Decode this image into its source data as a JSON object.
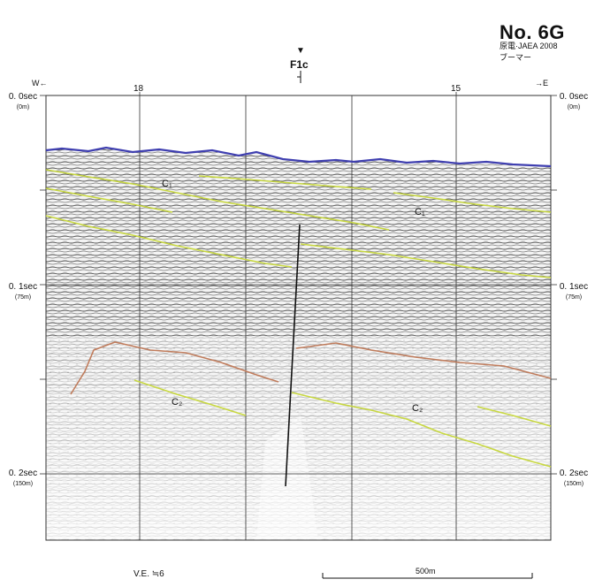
{
  "header": {
    "title": "No. 6G",
    "subtitle_line1": "原電·JAEA 2008",
    "subtitle_line2": "ブーマー"
  },
  "directions": {
    "west": "W←",
    "east": "→E"
  },
  "shot_points": [
    "18",
    "15"
  ],
  "time_axis": {
    "left": [
      {
        "time": "0. 0sec",
        "depth": "(0m)"
      },
      {
        "time": "0. 1sec",
        "depth": "(75m)"
      },
      {
        "time": "0. 2sec",
        "depth": "(150m)"
      }
    ],
    "right": [
      {
        "time": "0. 0sec",
        "depth": "(0m)"
      },
      {
        "time": "0. 1sec",
        "depth": "(75m)"
      },
      {
        "time": "0. 2sec",
        "depth": "(150m)"
      }
    ]
  },
  "fault": {
    "label": "F1c",
    "marker_glyph": "▼"
  },
  "horizon_labels": [
    "C₁",
    "C₁",
    "C₂",
    "C₂"
  ],
  "vertical_exaggeration": "V.E. ≒6",
  "scale_bar": {
    "label": "500m"
  },
  "colors": {
    "seafloor": "#3f3fb0",
    "horizon_c1": "#c8d840",
    "horizon_c2_upper": "#c07c5c",
    "horizon_c2_lower": "#c8d840",
    "fault_line": "#111111",
    "gridline": "#333333"
  }
}
